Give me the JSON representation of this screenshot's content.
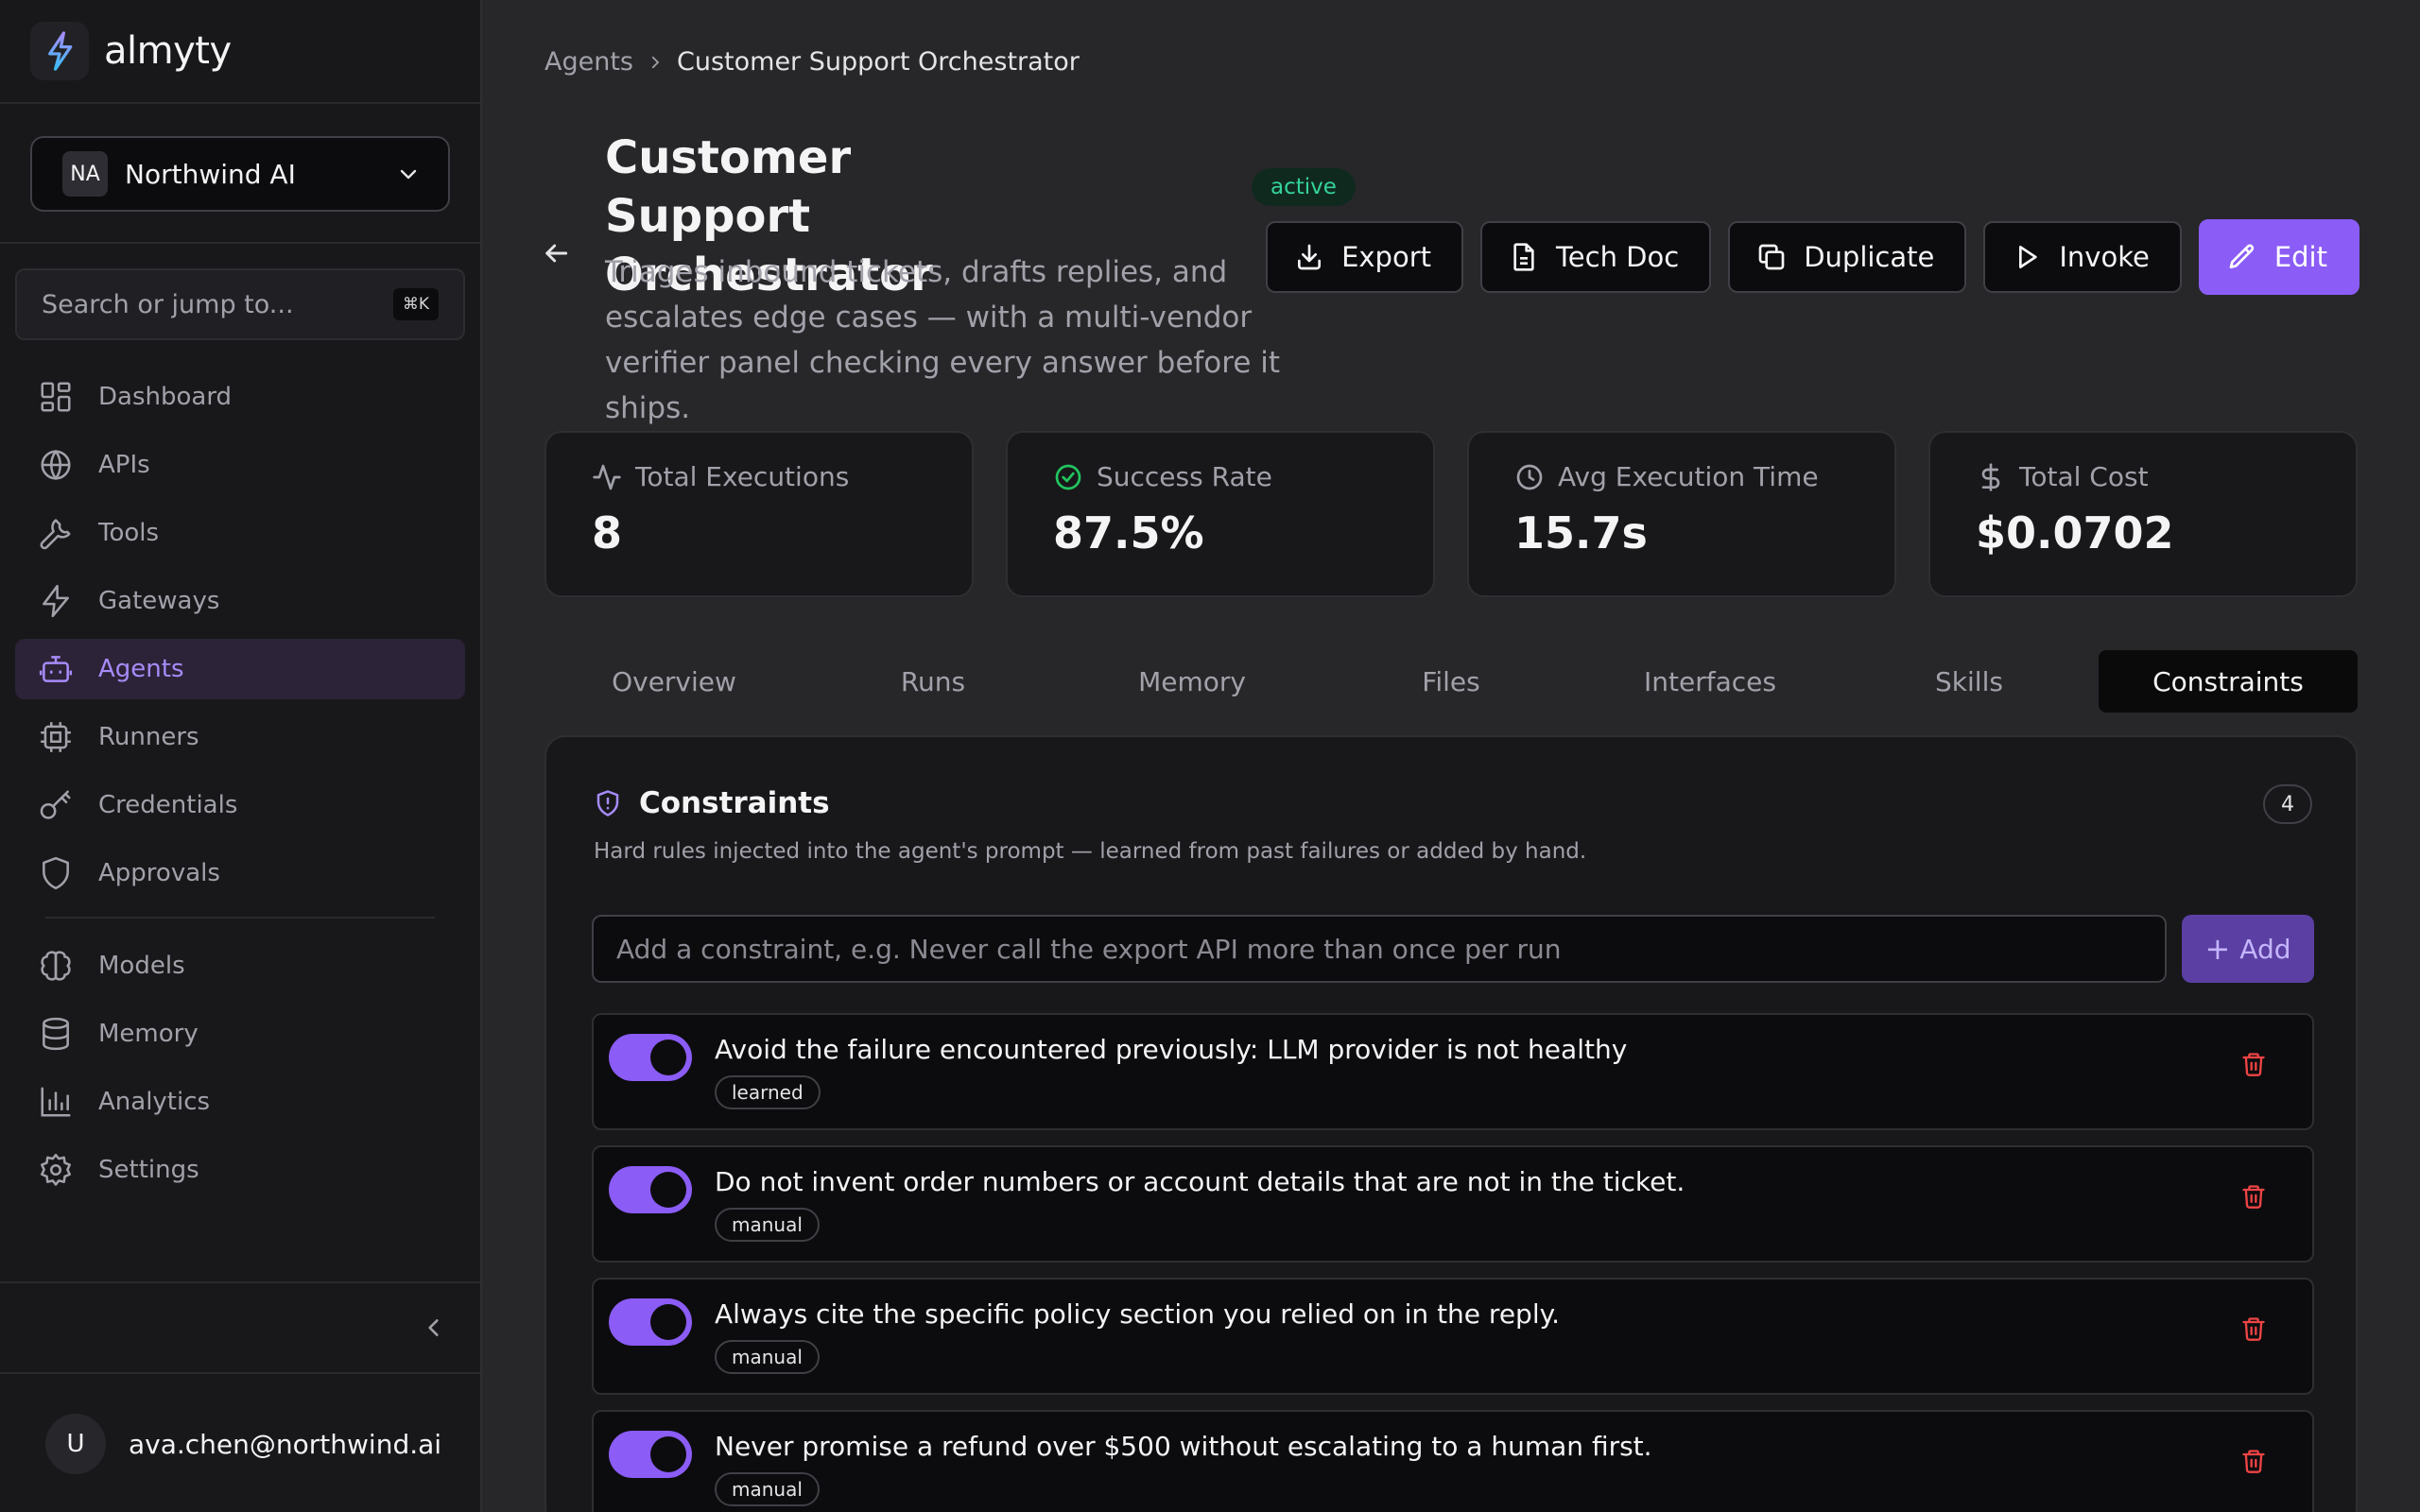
{
  "app": {
    "name": "almyty"
  },
  "org": {
    "initials": "NA",
    "name": "Northwind AI"
  },
  "search": {
    "placeholder": "Search or jump to...",
    "shortcut": "⌘K"
  },
  "nav": {
    "items": [
      {
        "label": "Dashboard",
        "icon": "dashboard-icon"
      },
      {
        "label": "APIs",
        "icon": "globe-icon"
      },
      {
        "label": "Tools",
        "icon": "wrench-icon"
      },
      {
        "label": "Gateways",
        "icon": "bolt-icon"
      },
      {
        "label": "Agents",
        "icon": "bot-icon",
        "active": true
      },
      {
        "label": "Runners",
        "icon": "cpu-icon"
      },
      {
        "label": "Credentials",
        "icon": "key-icon"
      },
      {
        "label": "Approvals",
        "icon": "shield-icon"
      }
    ],
    "secondary": [
      {
        "label": "Models",
        "icon": "brain-icon"
      },
      {
        "label": "Memory",
        "icon": "database-icon"
      },
      {
        "label": "Analytics",
        "icon": "bar-chart-icon"
      },
      {
        "label": "Settings",
        "icon": "gear-icon"
      }
    ]
  },
  "user": {
    "initial": "U",
    "email": "ava.chen@northwind.ai"
  },
  "breadcrumb": {
    "root": "Agents",
    "current": "Customer Support Orchestrator"
  },
  "agent": {
    "title": "Customer Support Orchestrator",
    "status": "active",
    "description": "Triages inbound tickets, drafts replies, and escalates edge cases — with a multi-vendor verifier panel checking every answer before it ships."
  },
  "actions": {
    "export": "Export",
    "tech_doc": "Tech Doc",
    "duplicate": "Duplicate",
    "invoke": "Invoke",
    "edit": "Edit"
  },
  "stats": [
    {
      "label": "Total Executions",
      "value": "8",
      "icon": "activity-icon"
    },
    {
      "label": "Success Rate",
      "value": "87.5%",
      "icon": "check-circle-icon"
    },
    {
      "label": "Avg Execution Time",
      "value": "15.7s",
      "icon": "clock-icon"
    },
    {
      "label": "Total Cost",
      "value": "$0.0702",
      "icon": "dollar-icon"
    }
  ],
  "tabs": [
    "Overview",
    "Runs",
    "Memory",
    "Files",
    "Interfaces",
    "Skills",
    "Constraints"
  ],
  "active_tab": "Constraints",
  "constraints": {
    "title": "Constraints",
    "count": "4",
    "subtitle": "Hard rules injected into the agent's prompt — learned from past failures or added by hand.",
    "input_placeholder": "Add a constraint, e.g. Never call the export API more than once per run",
    "add_label": "Add",
    "items": [
      {
        "text": "Avoid the failure encountered previously: LLM provider is not healthy",
        "tag": "learned",
        "enabled": true
      },
      {
        "text": "Do not invent order numbers or account details that are not in the ticket.",
        "tag": "manual",
        "enabled": true
      },
      {
        "text": "Always cite the specific policy section you relied on in the reply.",
        "tag": "manual",
        "enabled": true
      },
      {
        "text": "Never promise a refund over $500 without escalating to a human first.",
        "tag": "manual",
        "enabled": true
      }
    ]
  },
  "colors": {
    "accent": "#8b5cf6",
    "success": "#34d399",
    "danger": "#ef4444",
    "background": "#27272a",
    "sidebar": "#18181b"
  }
}
